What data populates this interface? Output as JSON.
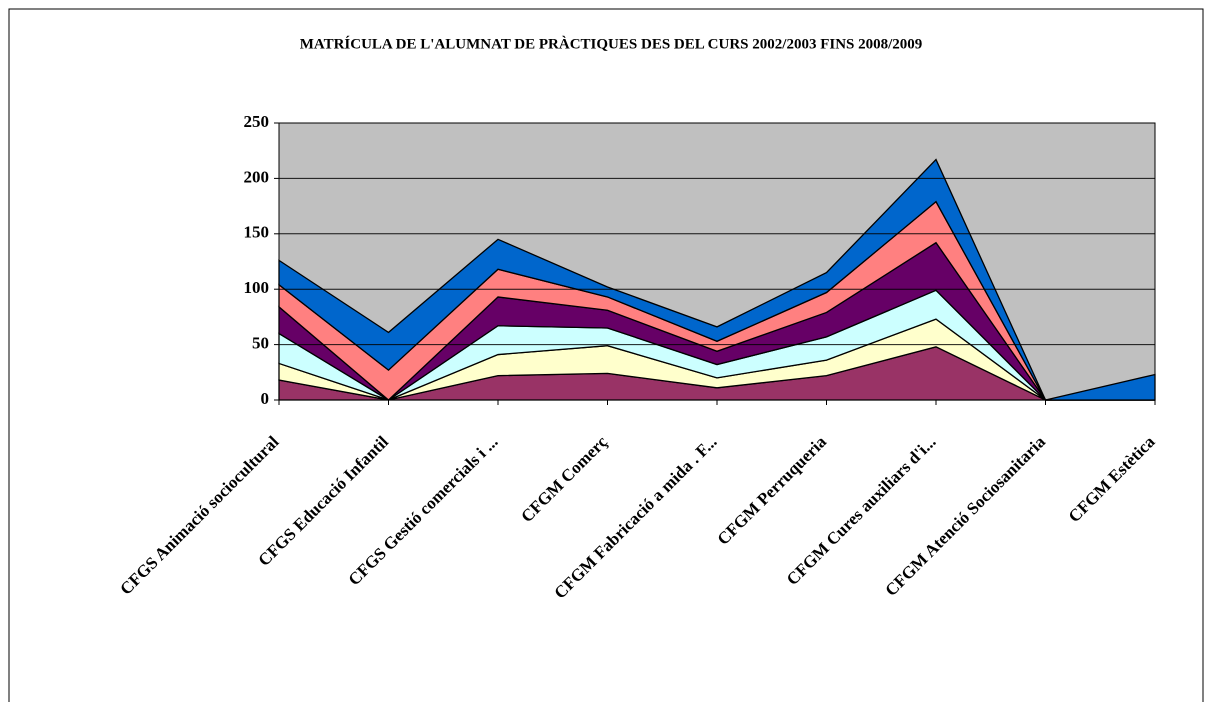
{
  "chart_data": {
    "type": "stacked_area",
    "title": "MATRÍCULA DE L'ALUMNAT DE PRÀCTIQUES DES DEL CURS 2002/2003 FINS 2008/2009",
    "categories": [
      "CFGS Animació sociocultural",
      "CFGS Educació Infantil",
      "CFGS Gestió comercials i ...",
      "CFGM Comerç",
      "CFGM Fabricació a mida . F...",
      "CFGM Perruqueria",
      "CFGM Cures auxiliars d'i...",
      "CFGM Atenció Sociosanitaria",
      "CFGM Estètica"
    ],
    "series": [
      {
        "color": "#993366",
        "values": [
          18,
          0,
          22,
          24,
          11,
          22,
          48,
          0,
          0
        ]
      },
      {
        "color": "#ffffcc",
        "values": [
          15,
          0,
          19,
          25,
          9,
          14,
          25,
          0,
          0
        ]
      },
      {
        "color": "#ccffff",
        "values": [
          27,
          0,
          26,
          16,
          12,
          21,
          26,
          0,
          0
        ]
      },
      {
        "color": "#660066",
        "values": [
          24,
          0,
          26,
          16,
          12,
          22,
          43,
          0,
          0
        ]
      },
      {
        "color": "#ff8080",
        "values": [
          20,
          27,
          25,
          12,
          9,
          18,
          37,
          0,
          0
        ]
      },
      {
        "color": "#0066cc",
        "values": [
          22,
          34,
          27,
          9,
          13,
          18,
          38,
          0,
          23
        ]
      }
    ],
    "ylim": [
      0,
      250
    ],
    "yticks": [
      0,
      50,
      100,
      150,
      200,
      250
    ],
    "grid": true,
    "background": "#c0c0c0"
  }
}
